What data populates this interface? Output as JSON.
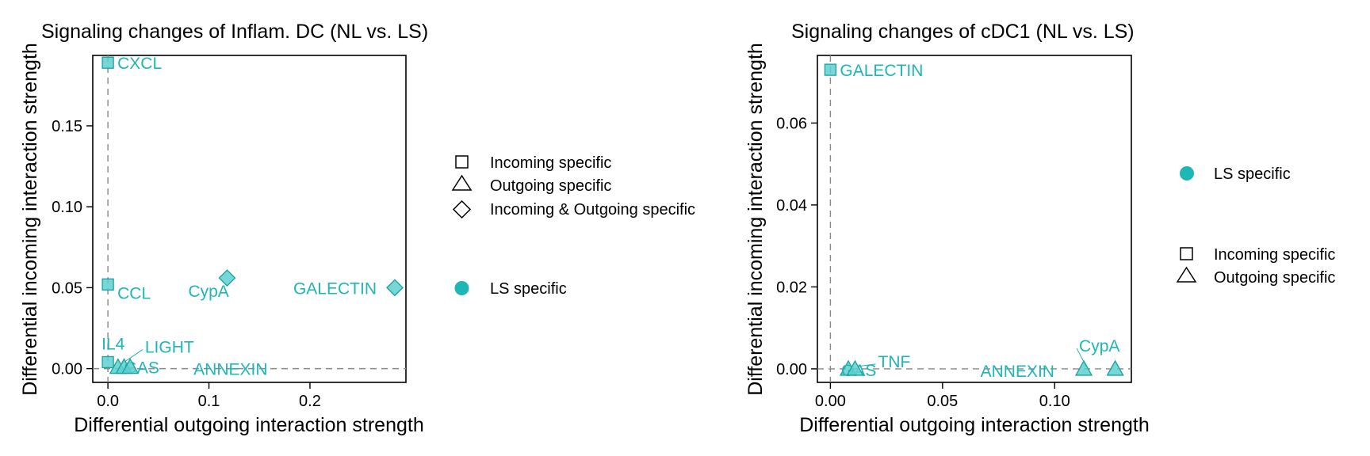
{
  "colors": {
    "accent": "#1fb6b6",
    "accent_fill": "#5fcfcf",
    "accent_dark": "#17a2a2"
  },
  "chart_data": [
    {
      "type": "scatter",
      "title": "Signaling changes of Inflam. DC (NL vs. LS)",
      "xlabel": "Differential outgoing interaction strength",
      "ylabel": "Differential incoming interaction strength",
      "xlim": [
        -0.015,
        0.295
      ],
      "ylim": [
        -0.0085,
        0.1935
      ],
      "xticks": [
        0.0,
        0.1,
        0.2
      ],
      "xtick_labels": [
        "0.0",
        "0.1",
        "0.2"
      ],
      "yticks": [
        0.0,
        0.05,
        0.1,
        0.15
      ],
      "ytick_labels": [
        "0.00",
        "0.05",
        "0.10",
        "0.15"
      ],
      "reference_lines": {
        "x": 0,
        "y": 0
      },
      "points": [
        {
          "label": "CXCL",
          "x": 0.0,
          "y": 0.189,
          "shape": "square"
        },
        {
          "label": "CCL",
          "x": 0.0,
          "y": 0.052,
          "shape": "square"
        },
        {
          "label": "IL4",
          "x": 0.0,
          "y": 0.004,
          "shape": "square"
        },
        {
          "label": "LIGHT",
          "x": 0.01,
          "y": 0.001,
          "shape": "triangle"
        },
        {
          "label": "GAS",
          "x": 0.016,
          "y": 0.001,
          "shape": "triangle"
        },
        {
          "label": "ANNEXIN",
          "x": 0.022,
          "y": 0.001,
          "shape": "triangle"
        },
        {
          "label": "CypA",
          "x": 0.118,
          "y": 0.056,
          "shape": "diamond"
        },
        {
          "label": "GALECTIN",
          "x": 0.284,
          "y": 0.05,
          "shape": "diamond"
        }
      ],
      "legend": {
        "shapes": [
          {
            "shape": "square",
            "label": "Incoming specific"
          },
          {
            "shape": "triangle",
            "label": "Outgoing specific"
          },
          {
            "shape": "diamond",
            "label": "Incoming & Outgoing specific"
          }
        ],
        "colors": [
          {
            "label": "LS specific"
          }
        ],
        "placement": "right"
      }
    },
    {
      "type": "scatter",
      "title": "Signaling changes of cDC1 (NL vs. LS)",
      "xlabel": "Differential outgoing interaction strength",
      "ylabel": "Differential incoming interaction strength",
      "xlim": [
        -0.0058,
        0.1342
      ],
      "ylim": [
        -0.0033,
        0.0765
      ],
      "xticks": [
        0.0,
        0.05,
        0.1
      ],
      "xtick_labels": [
        "0.00",
        "0.05",
        "0.10"
      ],
      "yticks": [
        0.0,
        0.02,
        0.04,
        0.06
      ],
      "ytick_labels": [
        "0.00",
        "0.02",
        "0.04",
        "0.06"
      ],
      "reference_lines": {
        "x": 0,
        "y": 0
      },
      "points": [
        {
          "label": "GALECTIN",
          "x": 0.0,
          "y": 0.073,
          "shape": "square"
        },
        {
          "label": "GAS",
          "x": 0.008,
          "y": 0.0,
          "shape": "triangle"
        },
        {
          "label": "TNF",
          "x": 0.011,
          "y": 0.0,
          "shape": "triangle"
        },
        {
          "label": "CypA",
          "x": 0.113,
          "y": 0.0,
          "shape": "triangle"
        },
        {
          "label": "ANNEXIN",
          "x": 0.127,
          "y": 0.0,
          "shape": "triangle"
        }
      ],
      "legend": {
        "colors": [
          {
            "label": "LS specific"
          }
        ],
        "shapes": [
          {
            "shape": "square",
            "label": "Incoming specific"
          },
          {
            "shape": "triangle",
            "label": "Outgoing specific"
          }
        ],
        "placement": "right"
      }
    }
  ]
}
